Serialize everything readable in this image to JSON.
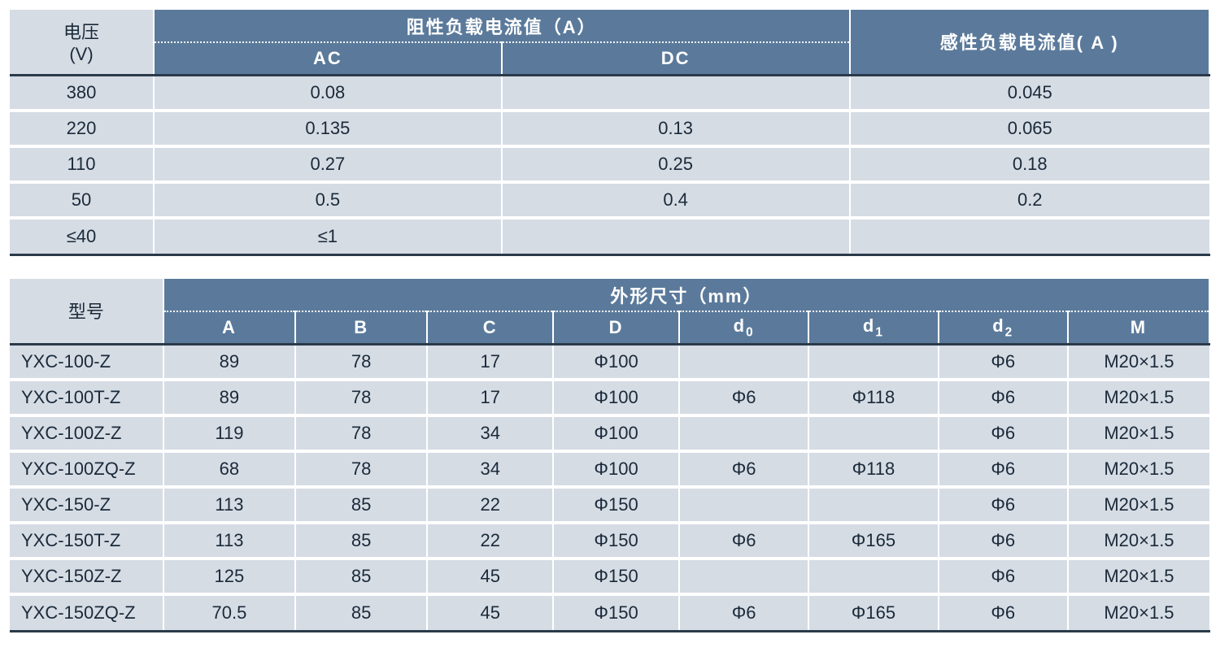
{
  "colors": {
    "header_blue": "#5b7a9b",
    "cell_gray": "#d6dce4",
    "text_dark": "#1a2a3a",
    "border_dark": "#2a3a4a",
    "white": "#ffffff"
  },
  "table1": {
    "col_widths_pct": [
      12,
      29,
      29,
      30
    ],
    "header": {
      "voltage_label_line1": "电压",
      "voltage_label_line2": "(V)",
      "resistive_load": "阻性负载电流值（A）",
      "ac": "AC",
      "dc": "DC",
      "inductive_load": "感性负载电流值( A )"
    },
    "rows": [
      {
        "v": "380",
        "ac": "0.08",
        "dc": "",
        "ind": "0.045"
      },
      {
        "v": "220",
        "ac": "0.135",
        "dc": "0.13",
        "ind": "0.065"
      },
      {
        "v": "110",
        "ac": "0.27",
        "dc": "0.25",
        "ind": "0.18"
      },
      {
        "v": "50",
        "ac": "0.5",
        "dc": "0.4",
        "ind": "0.2"
      },
      {
        "v": "≤40",
        "ac": "≤1",
        "dc": "",
        "ind": ""
      }
    ]
  },
  "table2": {
    "col_widths_pct": [
      12.8,
      11,
      11,
      10.5,
      10.5,
      10.8,
      10.8,
      10.8,
      11.8
    ],
    "header": {
      "model": "型号",
      "dimensions": "外形尺寸（mm）",
      "cols": [
        "A",
        "B",
        "C",
        "D",
        "d",
        "d",
        "d",
        "M"
      ],
      "subs": [
        "",
        "",
        "",
        "",
        "0",
        "1",
        "2",
        ""
      ]
    },
    "rows": [
      {
        "model": "YXC-100-Z",
        "A": "89",
        "B": "78",
        "C": "17",
        "D": "Φ100",
        "d0": "",
        "d1": "",
        "d2": "Φ6",
        "M": "M20×1.5"
      },
      {
        "model": "YXC-100T-Z",
        "A": "89",
        "B": "78",
        "C": "17",
        "D": "Φ100",
        "d0": "Φ6",
        "d1": "Φ118",
        "d2": "Φ6",
        "M": "M20×1.5"
      },
      {
        "model": "YXC-100Z-Z",
        "A": "119",
        "B": "78",
        "C": "34",
        "D": "Φ100",
        "d0": "",
        "d1": "",
        "d2": "Φ6",
        "M": "M20×1.5"
      },
      {
        "model": "YXC-100ZQ-Z",
        "A": "68",
        "B": "78",
        "C": "34",
        "D": "Φ100",
        "d0": "Φ6",
        "d1": "Φ118",
        "d2": "Φ6",
        "M": "M20×1.5"
      },
      {
        "model": "YXC-150-Z",
        "A": "113",
        "B": "85",
        "C": "22",
        "D": "Φ150",
        "d0": "",
        "d1": "",
        "d2": "Φ6",
        "M": "M20×1.5"
      },
      {
        "model": "YXC-150T-Z",
        "A": "113",
        "B": "85",
        "C": "22",
        "D": "Φ150",
        "d0": "Φ6",
        "d1": "Φ165",
        "d2": "Φ6",
        "M": "M20×1.5"
      },
      {
        "model": "YXC-150Z-Z",
        "A": "125",
        "B": "85",
        "C": "45",
        "D": "Φ150",
        "d0": "",
        "d1": "",
        "d2": "Φ6",
        "M": "M20×1.5"
      },
      {
        "model": "YXC-150ZQ-Z",
        "A": "70.5",
        "B": "85",
        "C": "45",
        "D": "Φ150",
        "d0": "Φ6",
        "d1": "Φ165",
        "d2": "Φ6",
        "M": "M20×1.5"
      }
    ]
  }
}
